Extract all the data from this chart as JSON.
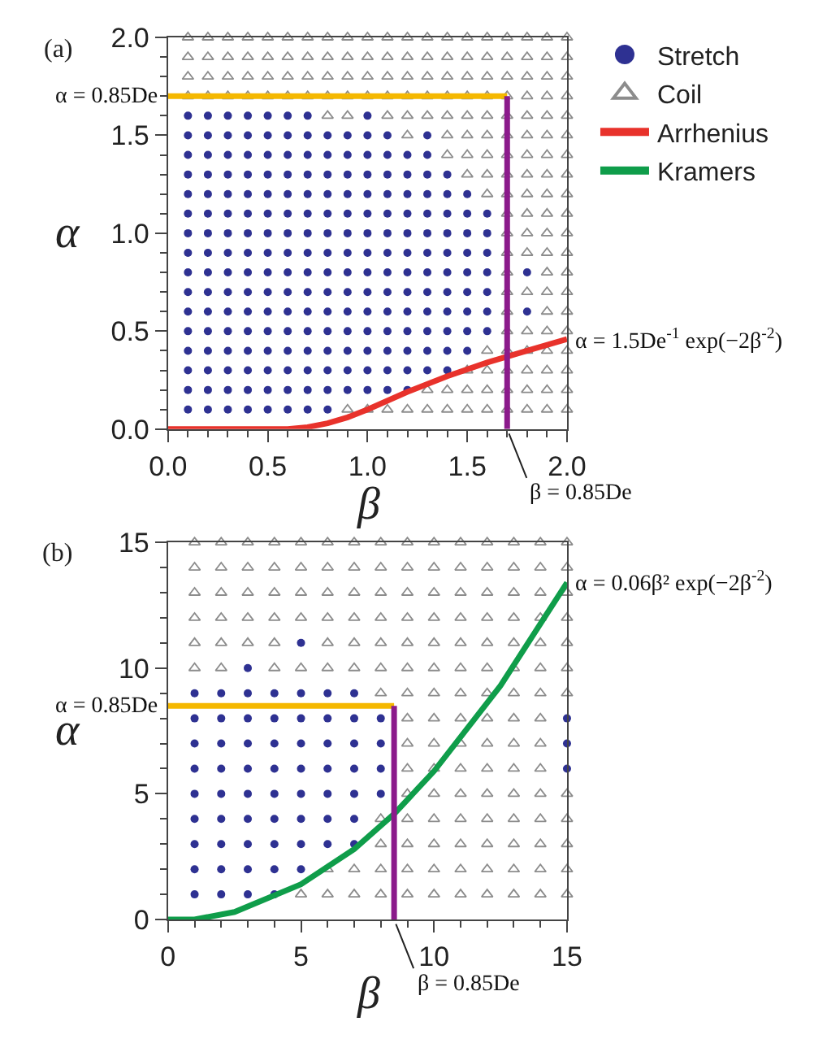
{
  "chart_data": [
    {
      "type": "scatter",
      "title": "(a)",
      "xlabel": "β",
      "ylabel": "α",
      "xlim": [
        0,
        2
      ],
      "ylim": [
        0,
        2
      ],
      "xticks": [
        {
          "value": 0,
          "label": "0.0"
        },
        {
          "value": 0.5,
          "label": "0.5"
        },
        {
          "value": 1,
          "label": "1.0"
        },
        {
          "value": 1.5,
          "label": "1.5"
        },
        {
          "value": 2,
          "label": "2.0"
        }
      ],
      "yticks": [
        {
          "value": 0,
          "label": "0.0"
        },
        {
          "value": 0.5,
          "label": "0.5"
        },
        {
          "value": 1,
          "label": "1.0"
        },
        {
          "value": 1.5,
          "label": "1.5"
        },
        {
          "value": 2,
          "label": "2.0"
        }
      ],
      "legend": "top right",
      "series": [
        {
          "name": "Stretch",
          "color": "#2e3192",
          "marker": "circle",
          "x": [
            0.1,
            0.2,
            0.3,
            0.4,
            0.5,
            0.6,
            0.7,
            0.8,
            0.1,
            0.2,
            0.3,
            0.4,
            0.5,
            0.6,
            0.7,
            0.8,
            0.9,
            1,
            1.1,
            1.2,
            0.1,
            0.2,
            0.3,
            0.4,
            0.5,
            0.6,
            0.7,
            0.8,
            0.9,
            1,
            1.1,
            1.2,
            1.3,
            1.4,
            0.1,
            0.2,
            0.3,
            0.4,
            0.5,
            0.6,
            0.7,
            0.8,
            0.9,
            1,
            1.1,
            1.2,
            1.3,
            1.4,
            1.5,
            0.1,
            0.2,
            0.3,
            0.4,
            0.5,
            0.6,
            0.7,
            0.8,
            0.9,
            1,
            1.1,
            1.2,
            1.3,
            1.4,
            1.5,
            1.6,
            0.1,
            0.2,
            0.3,
            0.4,
            0.5,
            0.6,
            0.7,
            0.8,
            0.9,
            1,
            1.1,
            1.2,
            1.3,
            1.4,
            1.5,
            1.6,
            1.8,
            0.1,
            0.2,
            0.3,
            0.4,
            0.5,
            0.6,
            0.7,
            0.8,
            0.9,
            1,
            1.1,
            1.2,
            1.3,
            1.4,
            1.5,
            1.6,
            0.1,
            0.2,
            0.3,
            0.4,
            0.5,
            0.6,
            0.7,
            0.8,
            0.9,
            1,
            1.1,
            1.2,
            1.3,
            1.4,
            1.5,
            1.6,
            1.8,
            0.1,
            0.2,
            0.3,
            0.4,
            0.5,
            0.6,
            0.7,
            0.8,
            0.9,
            1,
            1.1,
            1.2,
            1.3,
            1.4,
            1.5,
            1.6,
            0.1,
            0.2,
            0.3,
            0.4,
            0.5,
            0.6,
            0.7,
            0.8,
            0.9,
            1,
            1.1,
            1.2,
            1.3,
            1.4,
            1.5,
            1.6,
            0.1,
            0.2,
            0.3,
            0.4,
            0.5,
            0.6,
            0.7,
            0.8,
            0.9,
            1,
            1.1,
            1.2,
            1.3,
            1.4,
            1.5,
            1.6,
            0.1,
            0.2,
            0.3,
            0.4,
            0.5,
            0.6,
            0.7,
            0.8,
            0.9,
            1,
            1.1,
            1.2,
            1.3,
            1.4,
            1.5,
            0.1,
            0.2,
            0.3,
            0.4,
            0.5,
            0.6,
            0.7,
            0.8,
            0.9,
            1,
            1.1,
            1.2,
            1.3,
            1.4,
            0.1,
            0.2,
            0.3,
            0.4,
            0.5,
            0.6,
            0.7,
            0.8,
            0.9,
            1,
            1.1,
            1.2,
            1.3,
            0.1,
            0.2,
            0.3,
            0.4,
            0.5,
            0.6,
            0.7,
            0.8,
            0.9,
            1,
            1.1,
            1.3,
            0.1,
            0.2,
            0.3,
            0.4,
            0.5,
            0.6,
            0.7,
            1
          ],
          "values": [
            0.1,
            0.1,
            0.1,
            0.1,
            0.1,
            0.1,
            0.1,
            0.1,
            0.2,
            0.2,
            0.2,
            0.2,
            0.2,
            0.2,
            0.2,
            0.2,
            0.2,
            0.2,
            0.2,
            0.2,
            0.3,
            0.3,
            0.3,
            0.3,
            0.3,
            0.3,
            0.3,
            0.3,
            0.3,
            0.3,
            0.3,
            0.3,
            0.3,
            0.3,
            0.4,
            0.4,
            0.4,
            0.4,
            0.4,
            0.4,
            0.4,
            0.4,
            0.4,
            0.4,
            0.4,
            0.4,
            0.4,
            0.4,
            0.4,
            0.5,
            0.5,
            0.5,
            0.5,
            0.5,
            0.5,
            0.5,
            0.5,
            0.5,
            0.5,
            0.5,
            0.5,
            0.5,
            0.5,
            0.5,
            0.5,
            0.6,
            0.6,
            0.6,
            0.6,
            0.6,
            0.6,
            0.6,
            0.6,
            0.6,
            0.6,
            0.6,
            0.6,
            0.6,
            0.6,
            0.6,
            0.6,
            0.6,
            0.7,
            0.7,
            0.7,
            0.7,
            0.7,
            0.7,
            0.7,
            0.7,
            0.7,
            0.7,
            0.7,
            0.7,
            0.7,
            0.7,
            0.7,
            0.7,
            0.8,
            0.8,
            0.8,
            0.8,
            0.8,
            0.8,
            0.8,
            0.8,
            0.8,
            0.8,
            0.8,
            0.8,
            0.8,
            0.8,
            0.8,
            0.8,
            0.8,
            0.9,
            0.9,
            0.9,
            0.9,
            0.9,
            0.9,
            0.9,
            0.9,
            0.9,
            0.9,
            0.9,
            0.9,
            0.9,
            0.9,
            0.9,
            0.9,
            1,
            1,
            1,
            1,
            1,
            1,
            1,
            1,
            1,
            1,
            1,
            1,
            1,
            1,
            1,
            1,
            1.1,
            1.1,
            1.1,
            1.1,
            1.1,
            1.1,
            1.1,
            1.1,
            1.1,
            1.1,
            1.1,
            1.1,
            1.1,
            1.1,
            1.1,
            1.1,
            1.2,
            1.2,
            1.2,
            1.2,
            1.2,
            1.2,
            1.2,
            1.2,
            1.2,
            1.2,
            1.2,
            1.2,
            1.2,
            1.2,
            1.2,
            1.3,
            1.3,
            1.3,
            1.3,
            1.3,
            1.3,
            1.3,
            1.3,
            1.3,
            1.3,
            1.3,
            1.3,
            1.3,
            1.3,
            1.4,
            1.4,
            1.4,
            1.4,
            1.4,
            1.4,
            1.4,
            1.4,
            1.4,
            1.4,
            1.4,
            1.4,
            1.4,
            1.5,
            1.5,
            1.5,
            1.5,
            1.5,
            1.5,
            1.5,
            1.5,
            1.5,
            1.5,
            1.5,
            1.5,
            1.6,
            1.6,
            1.6,
            1.6,
            1.6,
            1.6,
            1.6,
            1.6
          ]
        },
        {
          "name": "Coil",
          "color": "#8c8c8c",
          "marker": "triangle",
          "x": [
            0.9,
            1,
            1.1,
            1.2,
            1.3,
            1.4,
            1.5,
            1.6,
            1.7,
            1.8,
            1.9,
            2,
            1.3,
            1.4,
            1.5,
            1.6,
            1.7,
            1.8,
            1.9,
            2,
            1.5,
            1.6,
            1.7,
            1.8,
            1.9,
            2,
            1.6,
            1.7,
            1.8,
            1.9,
            2,
            1.7,
            1.8,
            1.9,
            2,
            1.7,
            1.9,
            2,
            1.7,
            1.8,
            1.9,
            2,
            1.7,
            1.9,
            2,
            1.7,
            1.8,
            1.9,
            2,
            1.7,
            1.8,
            1.9,
            2,
            1.7,
            1.8,
            1.9,
            2,
            1.6,
            1.7,
            1.8,
            1.9,
            2,
            1.5,
            1.6,
            1.7,
            1.8,
            1.9,
            2,
            1.4,
            1.5,
            1.6,
            1.7,
            1.8,
            1.9,
            2,
            1.2,
            1.4,
            1.5,
            1.6,
            1.7,
            1.8,
            1.9,
            2,
            0.8,
            0.9,
            1.1,
            1.2,
            1.3,
            1.4,
            1.5,
            1.6,
            1.7,
            1.8,
            1.9,
            2,
            0.1,
            0.2,
            0.3,
            0.4,
            0.5,
            0.6,
            0.7,
            0.8,
            0.9,
            1,
            1.1,
            1.2,
            1.3,
            1.4,
            1.5,
            1.6,
            1.7,
            1.8,
            1.9,
            2,
            0.1,
            0.2,
            0.3,
            0.4,
            0.5,
            0.6,
            0.7,
            0.8,
            0.9,
            1,
            1.1,
            1.2,
            1.3,
            1.4,
            1.5,
            1.6,
            1.7,
            1.8,
            1.9,
            2,
            0.1,
            0.2,
            0.3,
            0.4,
            0.5,
            0.6,
            0.7,
            0.8,
            0.9,
            1,
            1.1,
            1.2,
            1.3,
            1.4,
            1.5,
            1.6,
            1.7,
            1.8,
            1.9,
            2,
            0.1,
            0.2,
            0.3,
            0.4,
            0.5,
            0.6,
            0.7,
            0.8,
            0.9,
            1,
            1.1,
            1.2,
            1.3,
            1.4,
            1.5,
            1.6,
            1.7,
            1.8,
            1.9,
            2
          ],
          "values": [
            0.1,
            0.1,
            0.1,
            0.1,
            0.1,
            0.1,
            0.1,
            0.1,
            0.1,
            0.1,
            0.1,
            0.1,
            0.2,
            0.2,
            0.2,
            0.2,
            0.2,
            0.2,
            0.2,
            0.2,
            0.3,
            0.3,
            0.3,
            0.3,
            0.3,
            0.3,
            0.4,
            0.4,
            0.4,
            0.4,
            0.4,
            0.5,
            0.5,
            0.5,
            0.5,
            0.6,
            0.6,
            0.6,
            0.7,
            0.7,
            0.7,
            0.7,
            0.8,
            0.8,
            0.8,
            0.9,
            0.9,
            0.9,
            0.9,
            1,
            1,
            1,
            1,
            1.1,
            1.1,
            1.1,
            1.1,
            1.2,
            1.2,
            1.2,
            1.2,
            1.2,
            1.3,
            1.3,
            1.3,
            1.3,
            1.3,
            1.3,
            1.4,
            1.4,
            1.4,
            1.4,
            1.4,
            1.4,
            1.4,
            1.5,
            1.5,
            1.5,
            1.5,
            1.5,
            1.5,
            1.5,
            1.5,
            1.6,
            1.6,
            1.6,
            1.6,
            1.6,
            1.6,
            1.6,
            1.6,
            1.6,
            1.6,
            1.6,
            1.6,
            1.7,
            1.7,
            1.7,
            1.7,
            1.7,
            1.7,
            1.7,
            1.7,
            1.7,
            1.7,
            1.7,
            1.7,
            1.7,
            1.7,
            1.7,
            1.7,
            1.7,
            1.7,
            1.7,
            1.7,
            1.8,
            1.8,
            1.8,
            1.8,
            1.8,
            1.8,
            1.8,
            1.8,
            1.8,
            1.8,
            1.8,
            1.8,
            1.8,
            1.8,
            1.8,
            1.8,
            1.8,
            1.8,
            1.8,
            1.8,
            1.9,
            1.9,
            1.9,
            1.9,
            1.9,
            1.9,
            1.9,
            1.9,
            1.9,
            1.9,
            1.9,
            1.9,
            1.9,
            1.9,
            1.9,
            1.9,
            1.9,
            1.9,
            1.9,
            1.9,
            2,
            2,
            2,
            2,
            2,
            2,
            2,
            2,
            2,
            2,
            2,
            2,
            2,
            2,
            2,
            2,
            2,
            2,
            2,
            2
          ]
        },
        {
          "name": "Arrhenius",
          "type": "line",
          "color": "#e8322b",
          "marker": "none",
          "x": [
            0,
            0.5,
            0.6,
            0.7,
            0.8,
            0.9,
            1,
            1.2,
            1.4,
            1.6,
            1.8,
            2
          ],
          "values": [
            0,
            0,
            0,
            0.01,
            0.03,
            0.06,
            0.1,
            0.19,
            0.27,
            0.34,
            0.4,
            0.46
          ]
        },
        {
          "type": "line",
          "color": "#f5b800",
          "marker": "none",
          "x": [
            0,
            1.7
          ],
          "values": [
            1.7,
            1.7
          ]
        },
        {
          "type": "line",
          "color": "#8b1a8b",
          "marker": "none",
          "x": [
            1.7,
            1.7
          ],
          "values": [
            0,
            1.7
          ]
        }
      ],
      "annotations": [
        {
          "text": "α = 0.85De",
          "x": 0,
          "y": 1.7
        },
        {
          "text": "α = 1.5De$^{-1}$ exp(−2β$^{-2}$)",
          "x": 2,
          "y": 0.46
        },
        {
          "text": "β = 0.85De",
          "x": 1.7,
          "y": 0
        }
      ]
    },
    {
      "type": "scatter",
      "title": "(b)",
      "xlabel": "β",
      "ylabel": "α",
      "xlim": [
        0,
        15
      ],
      "ylim": [
        0,
        15
      ],
      "xticks": [
        0,
        5,
        10,
        15
      ],
      "yticks": [
        0,
        5,
        10,
        15
      ],
      "legend": "top right",
      "series": [
        {
          "name": "Stretch",
          "color": "#2e3192",
          "marker": "circle",
          "x": [
            1,
            2,
            3,
            4,
            1,
            2,
            3,
            4,
            5,
            1,
            2,
            3,
            4,
            5,
            6,
            7,
            1,
            2,
            3,
            4,
            5,
            6,
            7,
            1,
            2,
            3,
            4,
            5,
            6,
            7,
            8,
            1,
            2,
            3,
            4,
            5,
            6,
            7,
            8,
            15,
            1,
            2,
            3,
            4,
            5,
            6,
            7,
            8,
            15,
            1,
            2,
            3,
            4,
            5,
            6,
            7,
            8,
            15,
            1,
            2,
            3,
            4,
            5,
            6,
            7,
            3,
            5
          ],
          "values": [
            1,
            1,
            1,
            1,
            2,
            2,
            2,
            2,
            2,
            3,
            3,
            3,
            3,
            3,
            3,
            3,
            4,
            4,
            4,
            4,
            4,
            4,
            4,
            5,
            5,
            5,
            5,
            5,
            5,
            5,
            5,
            6,
            6,
            6,
            6,
            6,
            6,
            6,
            6,
            6,
            7,
            7,
            7,
            7,
            7,
            7,
            7,
            7,
            7,
            8,
            8,
            8,
            8,
            8,
            8,
            8,
            8,
            8,
            9,
            9,
            9,
            9,
            9,
            9,
            9,
            10,
            11
          ]
        },
        {
          "name": "Coil",
          "color": "#8c8c8c",
          "marker": "triangle",
          "x": [
            5,
            6,
            7,
            8,
            9,
            10,
            11,
            12,
            13,
            14,
            15,
            6,
            7,
            8,
            9,
            10,
            11,
            12,
            13,
            14,
            15,
            8,
            9,
            10,
            11,
            12,
            13,
            14,
            15,
            8,
            9,
            10,
            11,
            12,
            13,
            14,
            15,
            9,
            10,
            11,
            12,
            13,
            14,
            15,
            9,
            10,
            11,
            12,
            13,
            14,
            9,
            10,
            11,
            12,
            13,
            14,
            9,
            10,
            11,
            12,
            13,
            14,
            8,
            9,
            10,
            11,
            12,
            13,
            14,
            15,
            1,
            2,
            4,
            5,
            6,
            7,
            8,
            9,
            10,
            11,
            12,
            13,
            14,
            15,
            1,
            2,
            3,
            4,
            6,
            7,
            8,
            9,
            10,
            11,
            12,
            13,
            14,
            15,
            1,
            2,
            3,
            4,
            5,
            6,
            7,
            8,
            9,
            10,
            11,
            12,
            13,
            14,
            15,
            1,
            2,
            3,
            4,
            5,
            6,
            7,
            8,
            9,
            10,
            11,
            12,
            13,
            14,
            15,
            1,
            2,
            3,
            4,
            5,
            6,
            7,
            8,
            9,
            10,
            11,
            12,
            13,
            14,
            15,
            1,
            2,
            3,
            4,
            5,
            6,
            7,
            8,
            9,
            10,
            11,
            12,
            13,
            14,
            15
          ],
          "values": [
            1,
            1,
            1,
            1,
            1,
            1,
            1,
            1,
            1,
            1,
            1,
            2,
            2,
            2,
            2,
            2,
            2,
            2,
            2,
            2,
            2,
            3,
            3,
            3,
            3,
            3,
            3,
            3,
            3,
            4,
            4,
            4,
            4,
            4,
            4,
            4,
            4,
            5,
            5,
            5,
            5,
            5,
            5,
            5,
            6,
            6,
            6,
            6,
            6,
            6,
            7,
            7,
            7,
            7,
            7,
            7,
            8,
            8,
            8,
            8,
            8,
            8,
            9,
            9,
            9,
            9,
            9,
            9,
            9,
            9,
            10,
            10,
            10,
            10,
            10,
            10,
            10,
            10,
            10,
            10,
            10,
            10,
            10,
            10,
            11,
            11,
            11,
            11,
            11,
            11,
            11,
            11,
            11,
            11,
            11,
            11,
            11,
            11,
            12,
            12,
            12,
            12,
            12,
            12,
            12,
            12,
            12,
            12,
            12,
            12,
            12,
            12,
            12,
            13,
            13,
            13,
            13,
            13,
            13,
            13,
            13,
            13,
            13,
            13,
            13,
            13,
            13,
            13,
            14,
            14,
            14,
            14,
            14,
            14,
            14,
            14,
            14,
            14,
            14,
            14,
            14,
            14,
            14,
            15,
            15,
            15,
            15,
            15,
            15,
            15,
            15,
            15,
            15,
            15,
            15,
            15,
            15,
            15
          ]
        },
        {
          "name": "Kramers",
          "type": "line",
          "color": "#0f9d4a",
          "marker": "none",
          "x": [
            0,
            1,
            2.5,
            5,
            7,
            8.5,
            10,
            12.5,
            15
          ],
          "values": [
            0,
            0,
            0.3,
            1.4,
            2.8,
            4.2,
            5.9,
            9.3,
            13.4
          ]
        },
        {
          "type": "line",
          "color": "#f5b800",
          "marker": "none",
          "x": [
            0,
            8.5
          ],
          "values": [
            8.5,
            8.5
          ]
        },
        {
          "type": "line",
          "color": "#8b1a8b",
          "marker": "none",
          "x": [
            8.5,
            8.5
          ],
          "values": [
            0,
            8.5
          ]
        }
      ],
      "annotations": [
        {
          "text": "α = 0.06β² exp(−2β$^{-2}$)",
          "x": 15,
          "y": 13.4
        },
        {
          "text": "α = 0.85De",
          "x": 0,
          "y": 8.5
        },
        {
          "text": "β = 0.85De",
          "x": 8.5,
          "y": 0
        }
      ]
    }
  ]
}
